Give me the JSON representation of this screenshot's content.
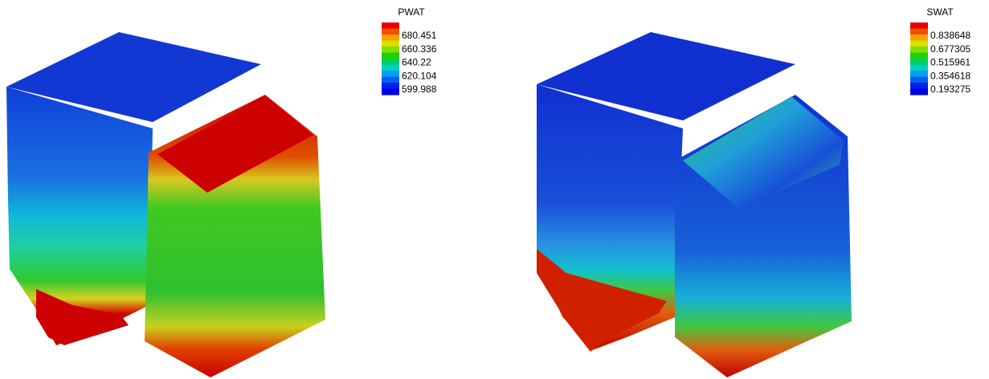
{
  "panels": [
    {
      "legend": {
        "title": "PWAT",
        "ticks": [
          680.451,
          660.336,
          640.22,
          620.104,
          599.988
        ]
      }
    },
    {
      "legend": {
        "title": "SWAT",
        "ticks": [
          0.838648,
          0.677305,
          0.515961,
          0.354618,
          0.193275
        ]
      }
    }
  ]
}
